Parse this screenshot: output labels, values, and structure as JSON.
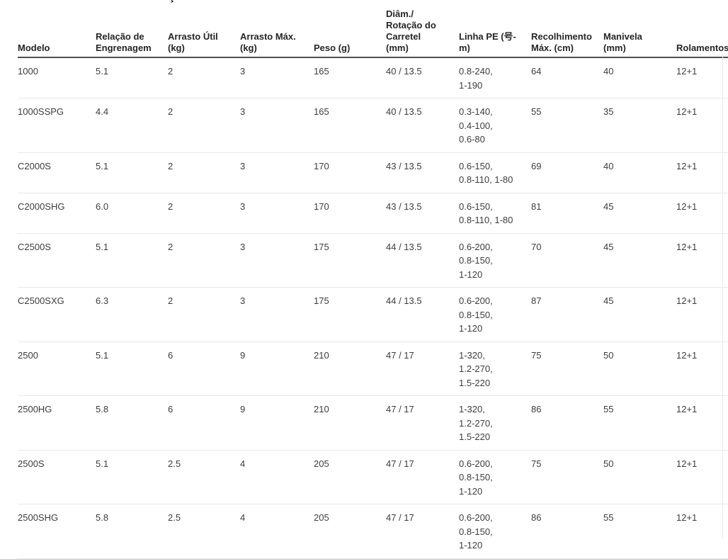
{
  "page": {
    "title_fragment": "ç"
  },
  "table": {
    "columns": [
      {
        "key": "modelo",
        "label": "Modelo"
      },
      {
        "key": "relacao",
        "label": "Relação de\nEngrenagem"
      },
      {
        "key": "arrasto-util",
        "label": "Arrasto Útil\n(kg)"
      },
      {
        "key": "arrasto-max",
        "label": "Arrasto Máx.\n(kg)"
      },
      {
        "key": "peso",
        "label": "Peso (g)"
      },
      {
        "key": "diam-rotacao",
        "label": "Diâm./\nRotação do\nCarretel\n(mm)"
      },
      {
        "key": "linha-pe",
        "label": "Linha PE (号-\nm)"
      },
      {
        "key": "recolhimento",
        "label": "Recolhimento\nMáx. (cm)"
      },
      {
        "key": "manivela",
        "label": "Manivela\n(mm)"
      },
      {
        "key": "rolamentos",
        "label": "Rolamentos"
      }
    ],
    "rows": [
      {
        "cells": [
          "1000",
          "5.1",
          "2",
          "3",
          "165",
          "40 / 13.5",
          "0.8-240,\n1-190",
          "64",
          "40",
          "12+1"
        ]
      },
      {
        "cells": [
          "1000SSPG",
          "4.4",
          "2",
          "3",
          "165",
          "40 / 13.5",
          "0.3-140,\n0.4-100,\n0.6-80",
          "55",
          "35",
          "12+1"
        ]
      },
      {
        "cells": [
          "C2000S",
          "5.1",
          "2",
          "3",
          "170",
          "43 / 13.5",
          "0.6-150,\n0.8-110, 1-80",
          "69",
          "40",
          "12+1"
        ]
      },
      {
        "cells": [
          "C2000SHG",
          "6.0",
          "2",
          "3",
          "170",
          "43 / 13.5",
          "0.6-150,\n0.8-110, 1-80",
          "81",
          "45",
          "12+1"
        ]
      },
      {
        "cells": [
          "C2500S",
          "5.1",
          "2",
          "3",
          "175",
          "44 / 13.5",
          "0.6-200,\n0.8-150,\n1-120",
          "70",
          "45",
          "12+1"
        ]
      },
      {
        "cells": [
          "C2500SXG",
          "6.3",
          "2",
          "3",
          "175",
          "44 / 13.5",
          "0.6-200,\n0.8-150,\n1-120",
          "87",
          "45",
          "12+1"
        ]
      },
      {
        "cells": [
          "2500",
          "5.1",
          "6",
          "9",
          "210",
          "47 / 17",
          "1-320,\n1.2-270,\n1.5-220",
          "75",
          "50",
          "12+1"
        ]
      },
      {
        "cells": [
          "2500HG",
          "5.8",
          "6",
          "9",
          "210",
          "47 / 17",
          "1-320,\n1.2-270,\n1.5-220",
          "86",
          "55",
          "12+1"
        ]
      },
      {
        "cells": [
          "2500S",
          "5.1",
          "2.5",
          "4",
          "205",
          "47 / 17",
          "0.6-200,\n0.8-150,\n1-120",
          "75",
          "50",
          "12+1"
        ]
      },
      {
        "cells": [
          "2500SHG",
          "5.8",
          "2.5",
          "4",
          "205",
          "47 / 17",
          "0.6-200,\n0.8-150,\n1-120",
          "86",
          "55",
          "12+1"
        ]
      }
    ]
  }
}
